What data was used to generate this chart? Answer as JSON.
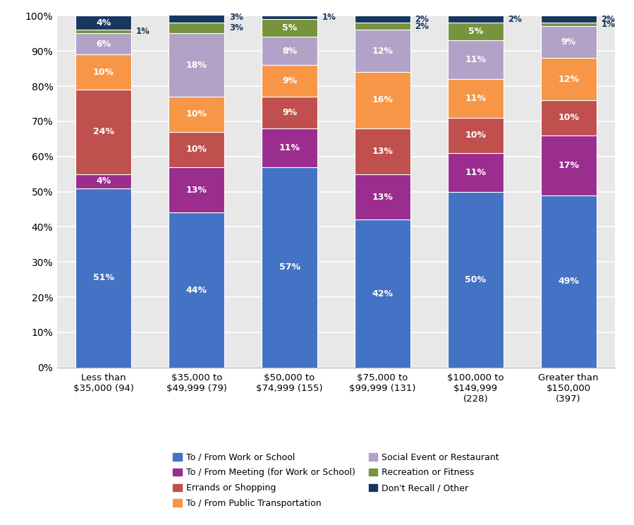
{
  "categories": [
    "Less than\n$35,000 (94)",
    "$35,000 to\n$49,999 (79)",
    "$50,000 to\n$74,999 (155)",
    "$75,000 to\n$99,999 (131)",
    "$100,000 to\n$149,999\n(228)",
    "Greater than\n$150,000\n(397)"
  ],
  "series": [
    {
      "label": "To / From Work or School",
      "color": "#4472C4",
      "values": [
        51,
        44,
        57,
        42,
        50,
        49
      ]
    },
    {
      "label": "To / From Meeting (for Work or School)",
      "color": "#9B2D8E",
      "values": [
        4,
        13,
        11,
        13,
        11,
        17
      ]
    },
    {
      "label": "Errands or Shopping",
      "color": "#C0504D",
      "values": [
        24,
        10,
        9,
        13,
        10,
        10
      ]
    },
    {
      "label": "To / From Public Transportation",
      "color": "#F79646",
      "values": [
        10,
        10,
        9,
        16,
        11,
        12
      ]
    },
    {
      "label": "Social Event or Restaurant",
      "color": "#B3A2C7",
      "values": [
        6,
        18,
        8,
        12,
        11,
        9
      ]
    },
    {
      "label": "Recreation or Fitness",
      "color": "#77933C",
      "values": [
        1,
        3,
        5,
        2,
        5,
        1
      ]
    },
    {
      "label": "Don't Recall / Other",
      "color": "#17375E",
      "values": [
        4,
        3,
        1,
        2,
        2,
        2
      ]
    }
  ],
  "ylim": [
    0,
    100
  ],
  "yticks": [
    0,
    10,
    20,
    30,
    40,
    50,
    60,
    70,
    80,
    90,
    100
  ],
  "ytick_labels": [
    "0%",
    "10%",
    "20%",
    "30%",
    "40%",
    "50%",
    "60%",
    "70%",
    "80%",
    "90%",
    "100%"
  ],
  "background_color": "#E8E8E8",
  "bar_width": 0.6,
  "small_label_threshold": 4,
  "outside_label_color": "#17375E",
  "legend_order": [
    0,
    1,
    2,
    3,
    4,
    5,
    6
  ]
}
